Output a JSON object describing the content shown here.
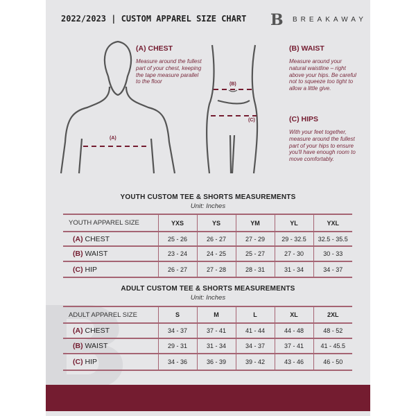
{
  "header": {
    "title": "2022/2023  |  CUSTOM APPAREL SIZE CHART",
    "brand": "BREAKAWAY",
    "logo_letter": "B"
  },
  "guide": {
    "chest": {
      "heading": "(A) CHEST",
      "text": "Measure around the fullest part of your chest, keeping the tape measure parallel to the floor",
      "marker": "(A)"
    },
    "waist": {
      "heading": "(B) WAIST",
      "text": "Measure around your natural waistline – right above your hips. Be careful not to squeeze too tight to allow a little give.",
      "marker": "(B)"
    },
    "hips": {
      "heading": "(C) HIPS",
      "text": "With your feet together, measure around the fullest part of your hips to ensure you'll have enough room to move comfortably.",
      "marker": "(C)"
    }
  },
  "youth": {
    "title": "YOUTH CUSTOM TEE & SHORTS MEASUREMENTS",
    "unit": "Unit: Inches",
    "header": [
      "YOUTH APPAREL SIZE",
      "YXS",
      "YS",
      "YM",
      "YL",
      "YXL"
    ],
    "rows": [
      {
        "code": "(A)",
        "name": "CHEST",
        "values": [
          "25 - 26",
          "26 - 27",
          "27 - 29",
          "29 - 32.5",
          "32.5 - 35.5"
        ]
      },
      {
        "code": "(B)",
        "name": "WAIST",
        "values": [
          "23 - 24",
          "24 - 25",
          "25 - 27",
          "27 - 30",
          "30 - 33"
        ]
      },
      {
        "code": "(C)",
        "name": "HIP",
        "values": [
          "26 - 27",
          "27 - 28",
          "28 - 31",
          "31 - 34",
          "34 - 37"
        ]
      }
    ]
  },
  "adult": {
    "title": "ADULT CUSTOM TEE & SHORTS MEASUREMENTS",
    "unit": "Unit: Inches",
    "header": [
      "ADULT APPAREL SIZE",
      "S",
      "M",
      "L",
      "XL",
      "2XL"
    ],
    "rows": [
      {
        "code": "(A)",
        "name": "CHEST",
        "values": [
          "34 - 37",
          "37 - 41",
          "41 - 44",
          "44 - 48",
          "48 - 52"
        ]
      },
      {
        "code": "(B)",
        "name": "WAIST",
        "values": [
          "29 - 31",
          "31 - 34",
          "34 - 37",
          "37 - 41",
          "41 - 45.5"
        ]
      },
      {
        "code": "(C)",
        "name": "HIP",
        "values": [
          "34 - 36",
          "36 - 39",
          "39 - 42",
          "43 - 46",
          "46 - 50"
        ]
      }
    ]
  },
  "colors": {
    "accent": "#741c30",
    "background": "#e6e6e8"
  }
}
